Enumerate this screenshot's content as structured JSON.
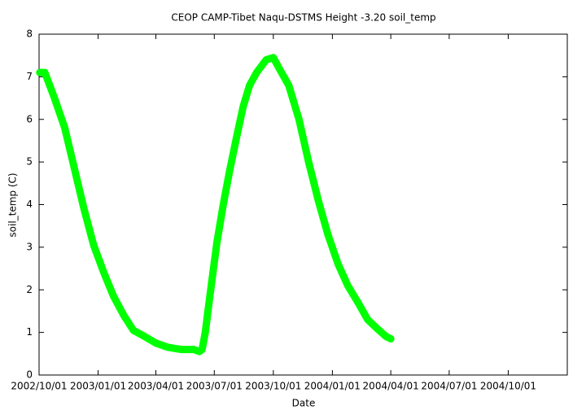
{
  "chart_data": {
    "type": "line",
    "title": "CEOP CAMP-Tibet Naqu-DSTMS Height -3.20 soil_temp",
    "x_label": "Date",
    "y_label": "soil_temp (C)",
    "x": [
      "2002-10-02",
      "2002-10-10",
      "2002-10-25",
      "2002-11-10",
      "2002-11-25",
      "2002-12-10",
      "2002-12-25",
      "2003-01-10",
      "2003-01-25",
      "2003-02-10",
      "2003-02-25",
      "2003-03-15",
      "2003-04-01",
      "2003-04-20",
      "2003-05-10",
      "2003-05-30",
      "2003-06-08",
      "2003-06-12",
      "2003-06-17",
      "2003-06-22",
      "2003-06-28",
      "2003-07-05",
      "2003-07-15",
      "2003-07-25",
      "2003-08-05",
      "2003-08-15",
      "2003-08-25",
      "2003-09-05",
      "2003-09-20",
      "2003-10-01",
      "2003-10-10",
      "2003-10-25",
      "2003-11-10",
      "2003-11-25",
      "2003-12-10",
      "2003-12-25",
      "2004-01-10",
      "2004-01-25",
      "2004-02-10",
      "2004-02-25",
      "2004-03-10",
      "2004-03-25",
      "2004-04-01"
    ],
    "series": [
      {
        "color": "#00ff00",
        "values": [
          7.1,
          7.1,
          6.5,
          5.8,
          4.85,
          3.9,
          3.05,
          2.4,
          1.85,
          1.4,
          1.05,
          0.9,
          0.75,
          0.65,
          0.6,
          0.6,
          0.55,
          0.6,
          1.0,
          1.6,
          2.3,
          3.1,
          4.0,
          4.8,
          5.6,
          6.3,
          6.8,
          7.1,
          7.4,
          7.45,
          7.2,
          6.8,
          6.0,
          5.0,
          4.1,
          3.3,
          2.6,
          2.1,
          1.7,
          1.3,
          1.1,
          0.9,
          0.85
        ]
      }
    ],
    "xlim": [
      "2002-10-01",
      "2005-01-01"
    ],
    "xticks": [
      {
        "value": "2002-10-01",
        "label": "2002/10/01"
      },
      {
        "value": "2003-01-01",
        "label": "2003/01/01"
      },
      {
        "value": "2003-04-01",
        "label": "2003/04/01"
      },
      {
        "value": "2003-07-01",
        "label": "2003/07/01"
      },
      {
        "value": "2003-10-01",
        "label": "2003/10/01"
      },
      {
        "value": "2004-01-01",
        "label": "2004/01/01"
      },
      {
        "value": "2004-04-01",
        "label": "2004/04/01"
      },
      {
        "value": "2004-07-01",
        "label": "2004/07/01"
      },
      {
        "value": "2004-10-01",
        "label": "2004/10/01"
      }
    ],
    "ylim": [
      0,
      8
    ],
    "yticks": [
      0,
      1,
      2,
      3,
      4,
      5,
      6,
      7,
      8
    ]
  }
}
